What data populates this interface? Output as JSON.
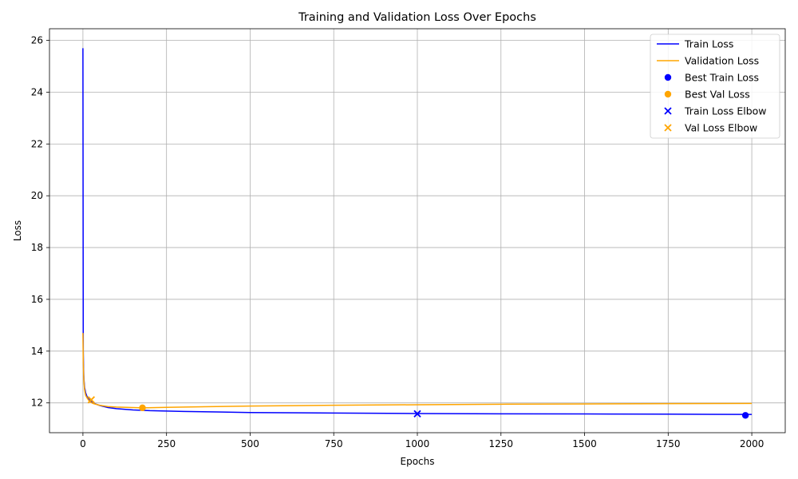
{
  "chart_data": {
    "type": "line",
    "title": "Training and Validation Loss Over Epochs",
    "xlabel": "Epochs",
    "ylabel": "Loss",
    "xlim": [
      -100,
      2100
    ],
    "ylim": [
      10.85,
      26.45
    ],
    "xticks": [
      0,
      250,
      500,
      750,
      1000,
      1250,
      1500,
      1750,
      2000
    ],
    "yticks": [
      12,
      14,
      16,
      18,
      20,
      22,
      24,
      26
    ],
    "grid": true,
    "legend_position": "top-right",
    "series": [
      {
        "name": "Train Loss",
        "kind": "line",
        "color": "#0000ff",
        "x": [
          0,
          1,
          2,
          3,
          5,
          8,
          12,
          20,
          30,
          50,
          75,
          100,
          150,
          200,
          300,
          400,
          500,
          750,
          1000,
          1250,
          1500,
          1750,
          2000
        ],
        "y": [
          25.7,
          14.0,
          13.3,
          12.9,
          12.6,
          12.4,
          12.25,
          12.1,
          12.0,
          11.9,
          11.82,
          11.78,
          11.73,
          11.7,
          11.67,
          11.65,
          11.63,
          11.61,
          11.59,
          11.58,
          11.575,
          11.565,
          11.555
        ]
      },
      {
        "name": "Validation Loss",
        "kind": "line",
        "color": "#ffa500",
        "x": [
          0,
          1,
          2,
          3,
          5,
          8,
          12,
          20,
          30,
          50,
          75,
          100,
          150,
          180,
          250,
          400,
          500,
          750,
          1000,
          1250,
          1500,
          1750,
          2000
        ],
        "y": [
          14.7,
          13.6,
          13.1,
          12.8,
          12.5,
          12.3,
          12.2,
          12.05,
          11.98,
          11.91,
          11.86,
          11.84,
          11.82,
          11.81,
          11.83,
          11.86,
          11.88,
          11.91,
          11.93,
          11.95,
          11.96,
          11.97,
          11.98
        ]
      },
      {
        "name": "Best Train Loss",
        "kind": "point",
        "marker": "circle",
        "color": "#0000ff",
        "x": [
          1981
        ],
        "y": [
          11.52
        ]
      },
      {
        "name": "Best Val Loss",
        "kind": "point",
        "marker": "circle",
        "color": "#ffa500",
        "x": [
          178
        ],
        "y": [
          11.81
        ]
      },
      {
        "name": "Train Loss Elbow",
        "kind": "point",
        "marker": "x",
        "color": "#0000ff",
        "x": [
          1000
        ],
        "y": [
          11.58
        ]
      },
      {
        "name": "Val Loss Elbow",
        "kind": "point",
        "marker": "x",
        "color": "#ffa500",
        "x": [
          25
        ],
        "y": [
          12.12
        ]
      }
    ]
  }
}
